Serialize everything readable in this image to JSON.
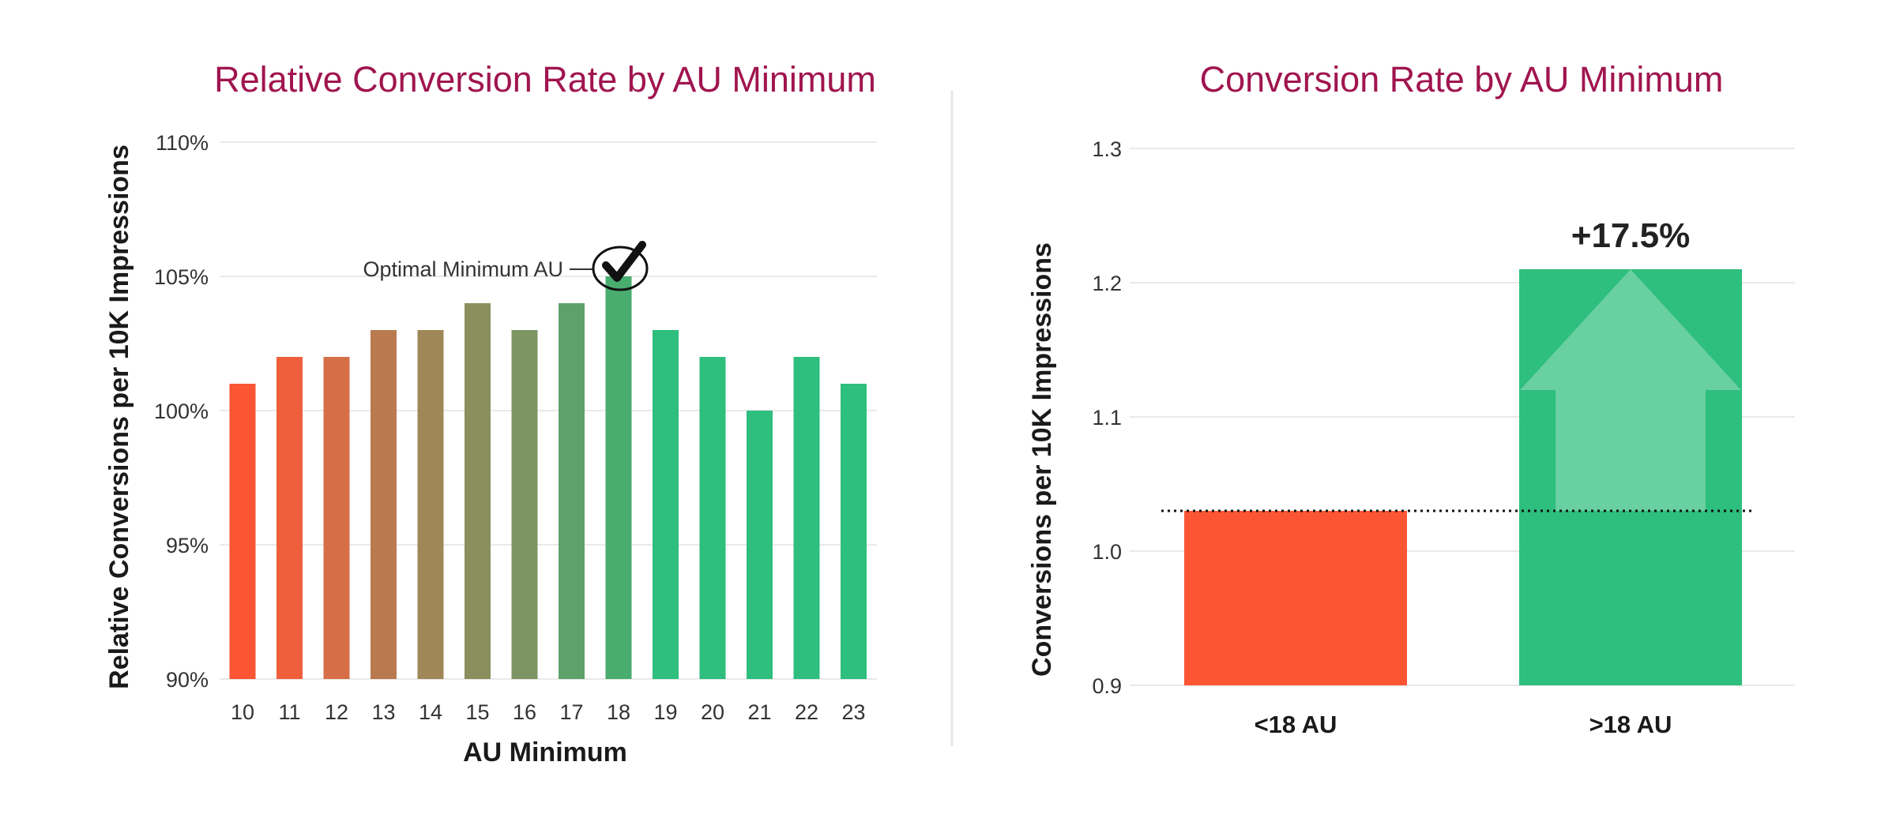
{
  "chart_data": [
    {
      "type": "bar",
      "title": "Relative Conversion Rate by AU Minimum",
      "xlabel": "AU Minimum",
      "ylabel": "Relative Conversions per 10K Impressions",
      "ylim": [
        90,
        110
      ],
      "yticks": [
        90,
        95,
        100,
        105,
        110
      ],
      "ytick_labels": [
        "90%",
        "95%",
        "100%",
        "105%",
        "110%"
      ],
      "grid": true,
      "categories": [
        "10",
        "11",
        "12",
        "13",
        "14",
        "15",
        "16",
        "17",
        "18",
        "19",
        "20",
        "21",
        "22",
        "23"
      ],
      "values": [
        101,
        102,
        102,
        103,
        103,
        104,
        103,
        104,
        105,
        103,
        102,
        100,
        102,
        101
      ],
      "colors": [
        "#fb5533",
        "#ef5f3b",
        "#d66f47",
        "#ba7a50",
        "#9f8757",
        "#8a8f5d",
        "#7d9563",
        "#5ea26a",
        "#4aad70",
        "#2ebe7d",
        "#2ebe7d",
        "#2ebe7d",
        "#2ebe7d",
        "#2ebe7d"
      ],
      "annotation": {
        "text": "Optimal Minimum AU",
        "target_category": "18"
      }
    },
    {
      "type": "bar",
      "title": "Conversion Rate by AU Minimum",
      "xlabel": "",
      "ylabel": "Conversions per 10K Impressions",
      "ylim": [
        0.9,
        1.3
      ],
      "yticks": [
        0.9,
        1.0,
        1.1,
        1.2,
        1.3
      ],
      "ytick_labels": [
        "0.9",
        "1.0",
        "1.1",
        "1.2",
        "1.3"
      ],
      "grid": true,
      "categories": [
        "<18 AU",
        ">18 AU"
      ],
      "values": [
        1.03,
        1.21
      ],
      "colors": [
        "#fb5533",
        "#2ebe7d"
      ],
      "baseline": 1.03,
      "change_label": "+17.5%"
    }
  ]
}
